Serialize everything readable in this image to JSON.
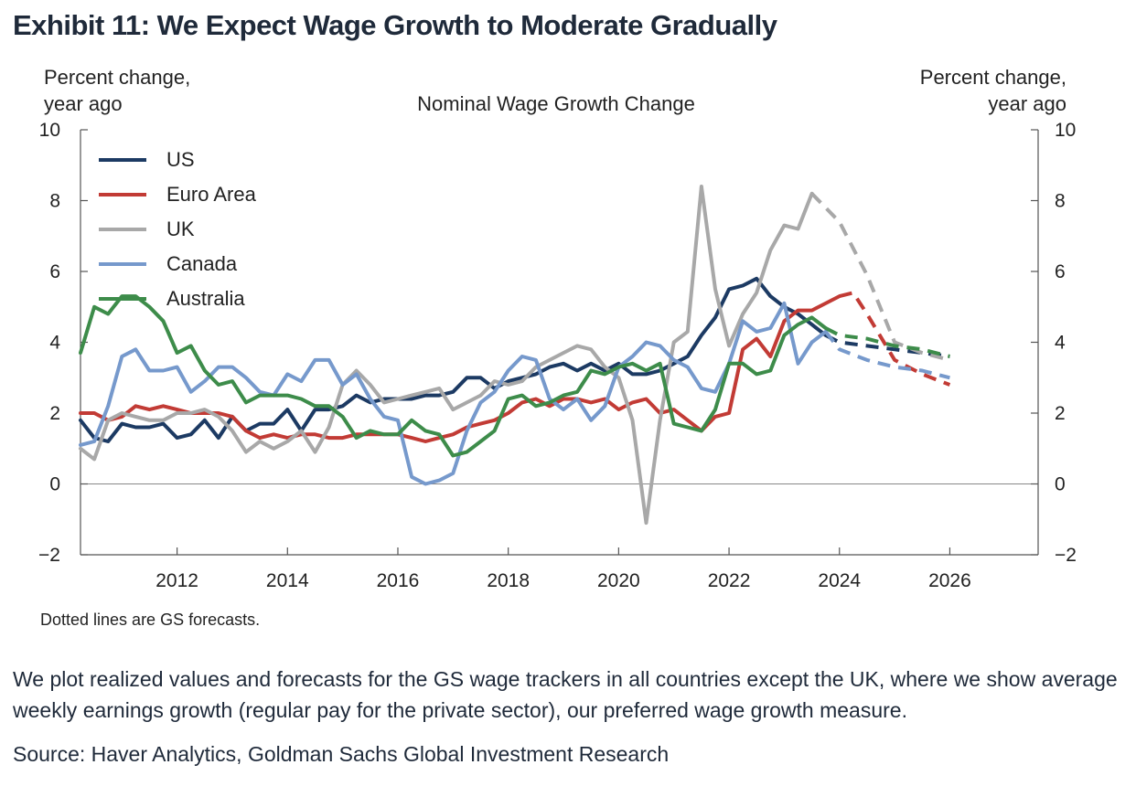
{
  "exhibit_title": "Exhibit 11: We Expect Wage Growth to Moderate Gradually",
  "caption": "We plot realized values and forecasts for the GS wage trackers in all countries except the UK, where we show average weekly earnings growth (regular pay for the private sector), our preferred wage growth measure.",
  "source": "Source: Haver Analytics, Goldman Sachs Global Investment Research",
  "chart_data": {
    "type": "line",
    "title": "Nominal Wage Growth Change",
    "ylabel_left": [
      "Percent change,",
      "year ago"
    ],
    "ylabel_right": [
      "Percent change,",
      "year ago"
    ],
    "footnote": "Dotted lines are GS forecasts.",
    "xlim": [
      2010.25,
      2027.6
    ],
    "ylim": [
      -2,
      10
    ],
    "x_ticks": [
      2012,
      2014,
      2016,
      2018,
      2020,
      2022,
      2024,
      2026
    ],
    "y_ticks": [
      -2,
      0,
      2,
      4,
      6,
      8,
      10
    ],
    "grid": false,
    "legend_position": "top-left",
    "series": [
      {
        "name": "US",
        "color": "#1c3a63",
        "x": [
          2010.25,
          2010.5,
          2010.75,
          2011,
          2011.25,
          2011.5,
          2011.75,
          2012,
          2012.25,
          2012.5,
          2012.75,
          2013,
          2013.25,
          2013.5,
          2013.75,
          2014,
          2014.25,
          2014.5,
          2014.75,
          2015,
          2015.25,
          2015.5,
          2015.75,
          2016,
          2016.25,
          2016.5,
          2016.75,
          2017,
          2017.25,
          2017.5,
          2017.75,
          2018,
          2018.25,
          2018.5,
          2018.75,
          2019,
          2019.25,
          2019.5,
          2019.75,
          2020,
          2020.25,
          2020.5,
          2020.75,
          2021,
          2021.25,
          2021.5,
          2021.75,
          2022,
          2022.25,
          2022.5,
          2022.75,
          2023,
          2023.25,
          2023.5,
          2023.75
        ],
        "y": [
          1.8,
          1.3,
          1.2,
          1.7,
          1.6,
          1.6,
          1.7,
          1.3,
          1.4,
          1.8,
          1.3,
          1.9,
          1.5,
          1.7,
          1.7,
          2.1,
          1.5,
          2.1,
          2.1,
          2.2,
          2.5,
          2.3,
          2.4,
          2.4,
          2.4,
          2.5,
          2.5,
          2.6,
          3.0,
          3.0,
          2.7,
          2.9,
          3.0,
          3.1,
          3.3,
          3.4,
          3.2,
          3.4,
          3.2,
          3.4,
          3.1,
          3.1,
          3.2,
          3.4,
          3.6,
          4.2,
          4.7,
          5.5,
          5.6,
          5.8,
          5.3,
          5.0,
          4.8,
          4.5,
          4.2
        ],
        "forecast_x": [
          2023.75,
          2024,
          2024.5,
          2025,
          2025.5,
          2026
        ],
        "forecast_y": [
          4.2,
          4.0,
          3.9,
          3.8,
          3.7,
          3.6
        ]
      },
      {
        "name": "Euro Area",
        "color": "#c23b35",
        "x": [
          2010.25,
          2010.5,
          2010.75,
          2011,
          2011.25,
          2011.5,
          2011.75,
          2012,
          2012.25,
          2012.5,
          2012.75,
          2013,
          2013.25,
          2013.5,
          2013.75,
          2014,
          2014.25,
          2014.5,
          2014.75,
          2015,
          2015.25,
          2015.5,
          2015.75,
          2016,
          2016.25,
          2016.5,
          2016.75,
          2017,
          2017.25,
          2017.5,
          2017.75,
          2018,
          2018.25,
          2018.5,
          2018.75,
          2019,
          2019.25,
          2019.5,
          2019.75,
          2020,
          2020.25,
          2020.5,
          2020.75,
          2021,
          2021.25,
          2021.5,
          2021.75,
          2022,
          2022.25,
          2022.5,
          2022.75,
          2023,
          2023.25,
          2023.5,
          2023.75,
          2024
        ],
        "y": [
          2.0,
          2.0,
          1.8,
          1.9,
          2.2,
          2.1,
          2.2,
          2.1,
          2.0,
          2.0,
          2.0,
          1.9,
          1.5,
          1.3,
          1.4,
          1.3,
          1.4,
          1.4,
          1.3,
          1.3,
          1.4,
          1.4,
          1.4,
          1.4,
          1.3,
          1.2,
          1.3,
          1.4,
          1.6,
          1.7,
          1.8,
          2.0,
          2.3,
          2.4,
          2.2,
          2.4,
          2.4,
          2.3,
          2.4,
          2.1,
          2.3,
          2.4,
          2.0,
          2.1,
          1.8,
          1.5,
          1.9,
          2.0,
          3.8,
          4.1,
          3.6,
          4.6,
          4.9,
          4.9,
          5.1,
          5.3
        ],
        "forecast_x": [
          2024,
          2024.25,
          2024.5,
          2025,
          2025.5,
          2026
        ],
        "forecast_y": [
          5.3,
          5.4,
          4.8,
          3.5,
          3.1,
          2.8
        ]
      },
      {
        "name": "UK",
        "color": "#a8a8a8",
        "x": [
          2010.25,
          2010.5,
          2010.75,
          2011,
          2011.25,
          2011.5,
          2011.75,
          2012,
          2012.25,
          2012.5,
          2012.75,
          2013,
          2013.25,
          2013.5,
          2013.75,
          2014,
          2014.25,
          2014.5,
          2014.75,
          2015,
          2015.25,
          2015.5,
          2015.75,
          2016,
          2016.25,
          2016.5,
          2016.75,
          2017,
          2017.25,
          2017.5,
          2017.75,
          2018,
          2018.25,
          2018.5,
          2018.75,
          2019,
          2019.25,
          2019.5,
          2019.75,
          2020,
          2020.25,
          2020.5,
          2020.75,
          2021,
          2021.25,
          2021.5,
          2021.75,
          2022,
          2022.25,
          2022.5,
          2022.75,
          2023,
          2023.25,
          2023.5
        ],
        "y": [
          1.0,
          0.7,
          1.8,
          2.0,
          1.9,
          1.8,
          1.8,
          2.0,
          2.0,
          2.1,
          1.9,
          1.5,
          0.9,
          1.2,
          1.0,
          1.2,
          1.5,
          0.9,
          1.6,
          2.8,
          3.2,
          2.8,
          2.3,
          2.4,
          2.5,
          2.6,
          2.7,
          2.1,
          2.3,
          2.5,
          2.9,
          2.8,
          2.9,
          3.3,
          3.5,
          3.7,
          3.9,
          3.8,
          3.3,
          3.0,
          1.8,
          -1.1,
          1.8,
          4.0,
          4.3,
          8.4,
          5.5,
          3.9,
          4.8,
          5.4,
          6.6,
          7.3,
          7.2,
          8.2
        ],
        "forecast_x": [
          2023.5,
          2024,
          2024.5,
          2025,
          2025.5,
          2026
        ],
        "forecast_y": [
          8.2,
          7.4,
          5.9,
          4.0,
          3.7,
          3.5
        ]
      },
      {
        "name": "Canada",
        "color": "#7699cc",
        "x": [
          2010.25,
          2010.5,
          2010.75,
          2011,
          2011.25,
          2011.5,
          2011.75,
          2012,
          2012.25,
          2012.5,
          2012.75,
          2013,
          2013.25,
          2013.5,
          2013.75,
          2014,
          2014.25,
          2014.5,
          2014.75,
          2015,
          2015.25,
          2015.5,
          2015.75,
          2016,
          2016.25,
          2016.5,
          2016.75,
          2017,
          2017.25,
          2017.5,
          2017.75,
          2018,
          2018.25,
          2018.5,
          2018.75,
          2019,
          2019.25,
          2019.5,
          2019.75,
          2020,
          2020.25,
          2020.5,
          2020.75,
          2021,
          2021.25,
          2021.5,
          2021.75,
          2022,
          2022.25,
          2022.5,
          2022.75,
          2023,
          2023.25,
          2023.5,
          2023.75
        ],
        "y": [
          1.1,
          1.2,
          2.2,
          3.6,
          3.8,
          3.2,
          3.2,
          3.3,
          2.6,
          2.9,
          3.3,
          3.3,
          3.0,
          2.6,
          2.5,
          3.1,
          2.9,
          3.5,
          3.5,
          2.8,
          3.1,
          2.4,
          1.9,
          1.8,
          0.2,
          0.0,
          0.1,
          0.3,
          1.5,
          2.3,
          2.6,
          3.2,
          3.6,
          3.5,
          2.4,
          2.1,
          2.4,
          1.8,
          2.2,
          3.3,
          3.6,
          4.0,
          3.9,
          3.5,
          3.3,
          2.7,
          2.6,
          3.4,
          4.6,
          4.3,
          4.4,
          5.1,
          3.4,
          4.0,
          4.3
        ],
        "forecast_x": [
          2023.75,
          2024,
          2024.5,
          2025,
          2025.5,
          2026
        ],
        "forecast_y": [
          4.3,
          3.8,
          3.5,
          3.3,
          3.2,
          3.0
        ]
      },
      {
        "name": "Australia",
        "color": "#3d8c4a",
        "x": [
          2010.25,
          2010.5,
          2010.75,
          2011,
          2011.25,
          2011.5,
          2011.75,
          2012,
          2012.25,
          2012.5,
          2012.75,
          2013,
          2013.25,
          2013.5,
          2013.75,
          2014,
          2014.25,
          2014.5,
          2014.75,
          2015,
          2015.25,
          2015.5,
          2015.75,
          2016,
          2016.25,
          2016.5,
          2016.75,
          2017,
          2017.25,
          2017.5,
          2017.75,
          2018,
          2018.25,
          2018.5,
          2018.75,
          2019,
          2019.25,
          2019.5,
          2019.75,
          2020,
          2020.25,
          2020.5,
          2020.75,
          2021,
          2021.25,
          2021.5,
          2021.75,
          2022,
          2022.25,
          2022.5,
          2022.75,
          2023,
          2023.25,
          2023.5,
          2023.75
        ],
        "y": [
          3.7,
          5.0,
          4.8,
          5.3,
          5.3,
          5.0,
          4.6,
          3.7,
          3.9,
          3.2,
          2.8,
          2.9,
          2.3,
          2.5,
          2.5,
          2.5,
          2.4,
          2.2,
          2.2,
          1.9,
          1.3,
          1.5,
          1.4,
          1.4,
          1.8,
          1.5,
          1.4,
          0.8,
          0.9,
          1.2,
          1.5,
          2.4,
          2.5,
          2.2,
          2.3,
          2.5,
          2.6,
          3.2,
          3.1,
          3.3,
          3.4,
          3.2,
          3.4,
          1.7,
          1.6,
          1.5,
          2.1,
          3.4,
          3.4,
          3.1,
          3.2,
          4.2,
          4.5,
          4.7,
          4.4
        ],
        "forecast_x": [
          2023.75,
          2024,
          2024.5,
          2025,
          2025.5,
          2026
        ],
        "forecast_y": [
          4.4,
          4.2,
          4.1,
          3.9,
          3.8,
          3.6
        ]
      }
    ]
  }
}
